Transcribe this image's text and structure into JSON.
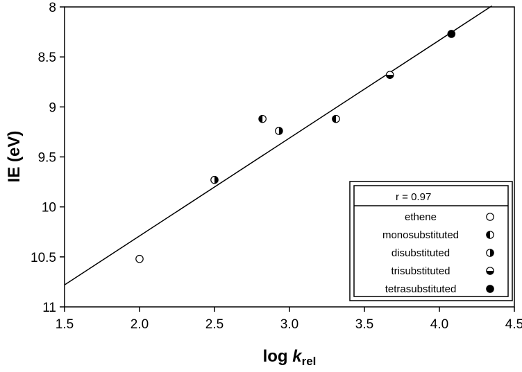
{
  "chart_data": {
    "type": "scatter",
    "title": "",
    "xlabel_main": "log ",
    "xlabel_italic": "k",
    "xlabel_sub": "rel",
    "ylabel": "IE (eV)",
    "xlim": [
      1.5,
      4.5
    ],
    "ylim": [
      8,
      11
    ],
    "y_inverted": true,
    "grid": false,
    "x_ticks": [
      "1.5",
      "2.0",
      "2.5",
      "3.0",
      "3.5",
      "4.0",
      "4.5"
    ],
    "y_ticks": [
      "8",
      "8.5",
      "9",
      "9.5",
      "10",
      "10.5",
      "11"
    ],
    "series": [
      {
        "name": "ethene",
        "marker": "open",
        "points": [
          {
            "x": 2.0,
            "y": 10.52
          }
        ]
      },
      {
        "name": "monosubstituted",
        "marker": "half-left",
        "points": [
          {
            "x": 2.82,
            "y": 9.12
          },
          {
            "x": 3.31,
            "y": 9.12
          }
        ]
      },
      {
        "name": "disubstituted",
        "marker": "half-right",
        "points": [
          {
            "x": 2.5,
            "y": 9.73
          },
          {
            "x": 2.93,
            "y": 9.24
          }
        ]
      },
      {
        "name": "trisubstituted",
        "marker": "half-bottom",
        "points": [
          {
            "x": 3.67,
            "y": 8.68
          }
        ]
      },
      {
        "name": "tetrasubstituted",
        "marker": "filled",
        "points": [
          {
            "x": 4.08,
            "y": 8.27
          }
        ]
      }
    ],
    "fit_line": {
      "x": [
        1.5,
        4.35
      ],
      "y": [
        10.78,
        7.99
      ]
    },
    "legend": {
      "position": "bottom-right",
      "header": "r = 0.97",
      "entries": [
        "ethene",
        "monosubstituted",
        "disubstituted",
        "trisubstituted",
        "tetrasubstituted"
      ]
    }
  }
}
